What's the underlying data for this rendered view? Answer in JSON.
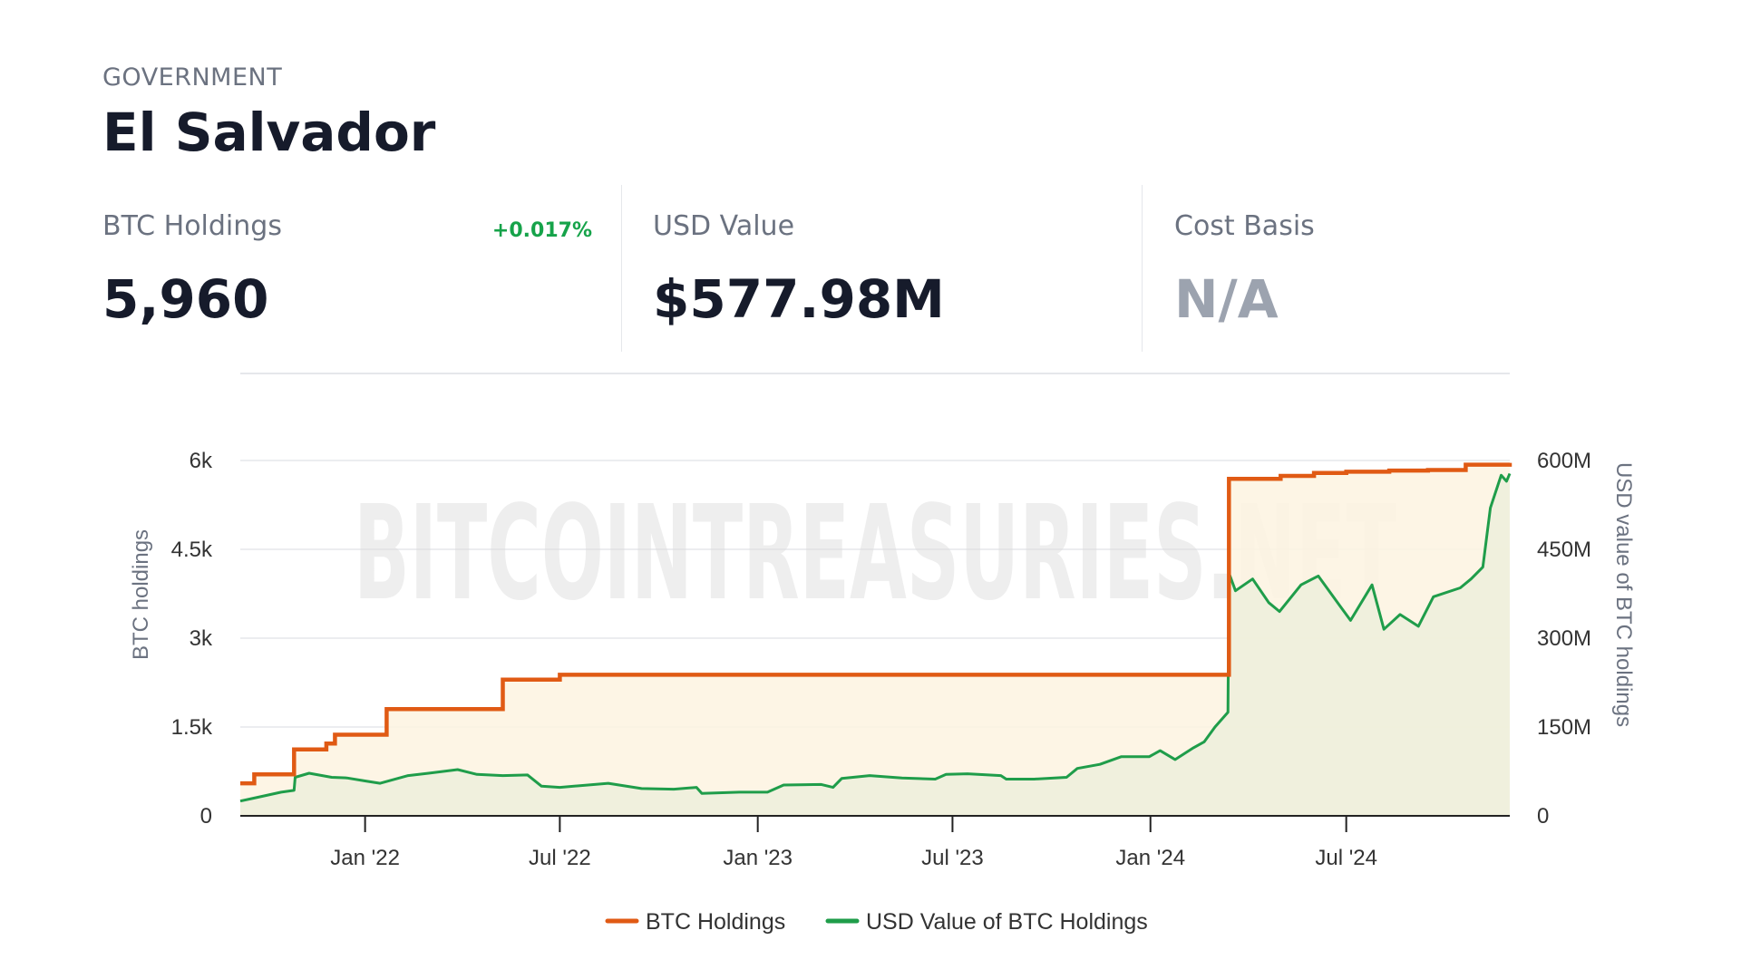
{
  "header": {
    "category": "GOVERNMENT",
    "entity_name": "El Salvador"
  },
  "stats": {
    "btc_holdings": {
      "label": "BTC Holdings",
      "value": "5,960",
      "change": "+0.017%"
    },
    "usd_value": {
      "label": "USD Value",
      "value": "$577.98M"
    },
    "cost_basis": {
      "label": "Cost Basis",
      "value": "N/A"
    }
  },
  "colors": {
    "btc_line": "#e05a14",
    "btc_fill": "#fdf3e1",
    "usd_line": "#1f9d4a",
    "usd_fill": "#eef0dc",
    "accent_positive": "#16a34a"
  },
  "chart_data": {
    "type": "line",
    "watermark": "BITCOINTREASURIES.NET",
    "x_range": [
      "2021-09-07",
      "2024-11-30"
    ],
    "x_ticks": [
      {
        "date": "2022-01-01",
        "label": "Jan '22"
      },
      {
        "date": "2022-07-01",
        "label": "Jul '22"
      },
      {
        "date": "2023-01-01",
        "label": "Jan '23"
      },
      {
        "date": "2023-07-01",
        "label": "Jul '23"
      },
      {
        "date": "2024-01-01",
        "label": "Jan '24"
      },
      {
        "date": "2024-07-01",
        "label": "Jul '24"
      }
    ],
    "y_left": {
      "label": "BTC holdings",
      "range": [
        0,
        6000
      ],
      "ticks": [
        {
          "v": 0,
          "label": "0"
        },
        {
          "v": 1500,
          "label": "1.5k"
        },
        {
          "v": 3000,
          "label": "3k"
        },
        {
          "v": 4500,
          "label": "4.5k"
        },
        {
          "v": 6000,
          "label": "6k"
        }
      ]
    },
    "y_right": {
      "label": "USD value of BTC holdings",
      "range": [
        0,
        600000000
      ],
      "ticks": [
        {
          "v": 0,
          "label": "0"
        },
        {
          "v": 150000000,
          "label": "150M"
        },
        {
          "v": 300000000,
          "label": "300M"
        },
        {
          "v": 450000000,
          "label": "450M"
        },
        {
          "v": 600000000,
          "label": "600M"
        }
      ]
    },
    "grid": true,
    "legend_position": "bottom",
    "series": [
      {
        "name": "BTC Holdings",
        "axis": "left",
        "color": "#e05a14",
        "step": true,
        "points": [
          [
            "2021-09-07",
            550
          ],
          [
            "2021-09-20",
            700
          ],
          [
            "2021-10-27",
            1120
          ],
          [
            "2021-11-26",
            1220
          ],
          [
            "2021-12-04",
            1370
          ],
          [
            "2022-01-21",
            1801
          ],
          [
            "2022-05-09",
            2301
          ],
          [
            "2022-07-01",
            2381
          ],
          [
            "2024-03-14",
            5690
          ],
          [
            "2024-05-01",
            5740
          ],
          [
            "2024-06-01",
            5790
          ],
          [
            "2024-07-01",
            5810
          ],
          [
            "2024-08-10",
            5830
          ],
          [
            "2024-09-15",
            5840
          ],
          [
            "2024-10-20",
            5930
          ],
          [
            "2024-11-30",
            5960
          ]
        ]
      },
      {
        "name": "USD Value of BTC Holdings",
        "axis": "right",
        "color": "#1f9d4a",
        "step": false,
        "points": [
          [
            "2021-09-07",
            25000000
          ],
          [
            "2021-09-20",
            30000000
          ],
          [
            "2021-10-15",
            40000000
          ],
          [
            "2021-10-27",
            43000000
          ],
          [
            "2021-10-28",
            65000000
          ],
          [
            "2021-11-10",
            72000000
          ],
          [
            "2021-12-01",
            65000000
          ],
          [
            "2021-12-15",
            64000000
          ],
          [
            "2022-01-01",
            59000000
          ],
          [
            "2022-01-15",
            55000000
          ],
          [
            "2022-02-10",
            68000000
          ],
          [
            "2022-03-01",
            72000000
          ],
          [
            "2022-03-28",
            78000000
          ],
          [
            "2022-04-15",
            70000000
          ],
          [
            "2022-05-09",
            68000000
          ],
          [
            "2022-06-01",
            69000000
          ],
          [
            "2022-06-14",
            50000000
          ],
          [
            "2022-07-01",
            48000000
          ],
          [
            "2022-08-15",
            55000000
          ],
          [
            "2022-09-15",
            46000000
          ],
          [
            "2022-10-15",
            45000000
          ],
          [
            "2022-11-05",
            48000000
          ],
          [
            "2022-11-10",
            38000000
          ],
          [
            "2022-12-15",
            40000000
          ],
          [
            "2023-01-10",
            40000000
          ],
          [
            "2023-01-25",
            52000000
          ],
          [
            "2023-03-01",
            53000000
          ],
          [
            "2023-03-12",
            48000000
          ],
          [
            "2023-03-20",
            63000000
          ],
          [
            "2023-04-15",
            68000000
          ],
          [
            "2023-05-15",
            64000000
          ],
          [
            "2023-06-15",
            62000000
          ],
          [
            "2023-06-25",
            70000000
          ],
          [
            "2023-07-15",
            71000000
          ],
          [
            "2023-08-15",
            68000000
          ],
          [
            "2023-08-20",
            62000000
          ],
          [
            "2023-09-15",
            62000000
          ],
          [
            "2023-10-15",
            65000000
          ],
          [
            "2023-10-25",
            80000000
          ],
          [
            "2023-11-15",
            87000000
          ],
          [
            "2023-12-05",
            100000000
          ],
          [
            "2023-12-31",
            100000000
          ],
          [
            "2024-01-10",
            110000000
          ],
          [
            "2024-01-24",
            95000000
          ],
          [
            "2024-02-10",
            115000000
          ],
          [
            "2024-02-20",
            125000000
          ],
          [
            "2024-03-01",
            150000000
          ],
          [
            "2024-03-13",
            175000000
          ],
          [
            "2024-03-14",
            410000000
          ],
          [
            "2024-03-20",
            380000000
          ],
          [
            "2024-04-05",
            400000000
          ],
          [
            "2024-04-20",
            360000000
          ],
          [
            "2024-04-30",
            345000000
          ],
          [
            "2024-05-20",
            390000000
          ],
          [
            "2024-06-05",
            405000000
          ],
          [
            "2024-06-25",
            355000000
          ],
          [
            "2024-07-05",
            330000000
          ],
          [
            "2024-07-25",
            390000000
          ],
          [
            "2024-08-05",
            315000000
          ],
          [
            "2024-08-20",
            340000000
          ],
          [
            "2024-09-06",
            320000000
          ],
          [
            "2024-09-20",
            370000000
          ],
          [
            "2024-10-15",
            385000000
          ],
          [
            "2024-10-25",
            400000000
          ],
          [
            "2024-11-05",
            420000000
          ],
          [
            "2024-11-12",
            520000000
          ],
          [
            "2024-11-22",
            575000000
          ],
          [
            "2024-11-27",
            565000000
          ],
          [
            "2024-11-30",
            578000000
          ]
        ]
      }
    ]
  }
}
